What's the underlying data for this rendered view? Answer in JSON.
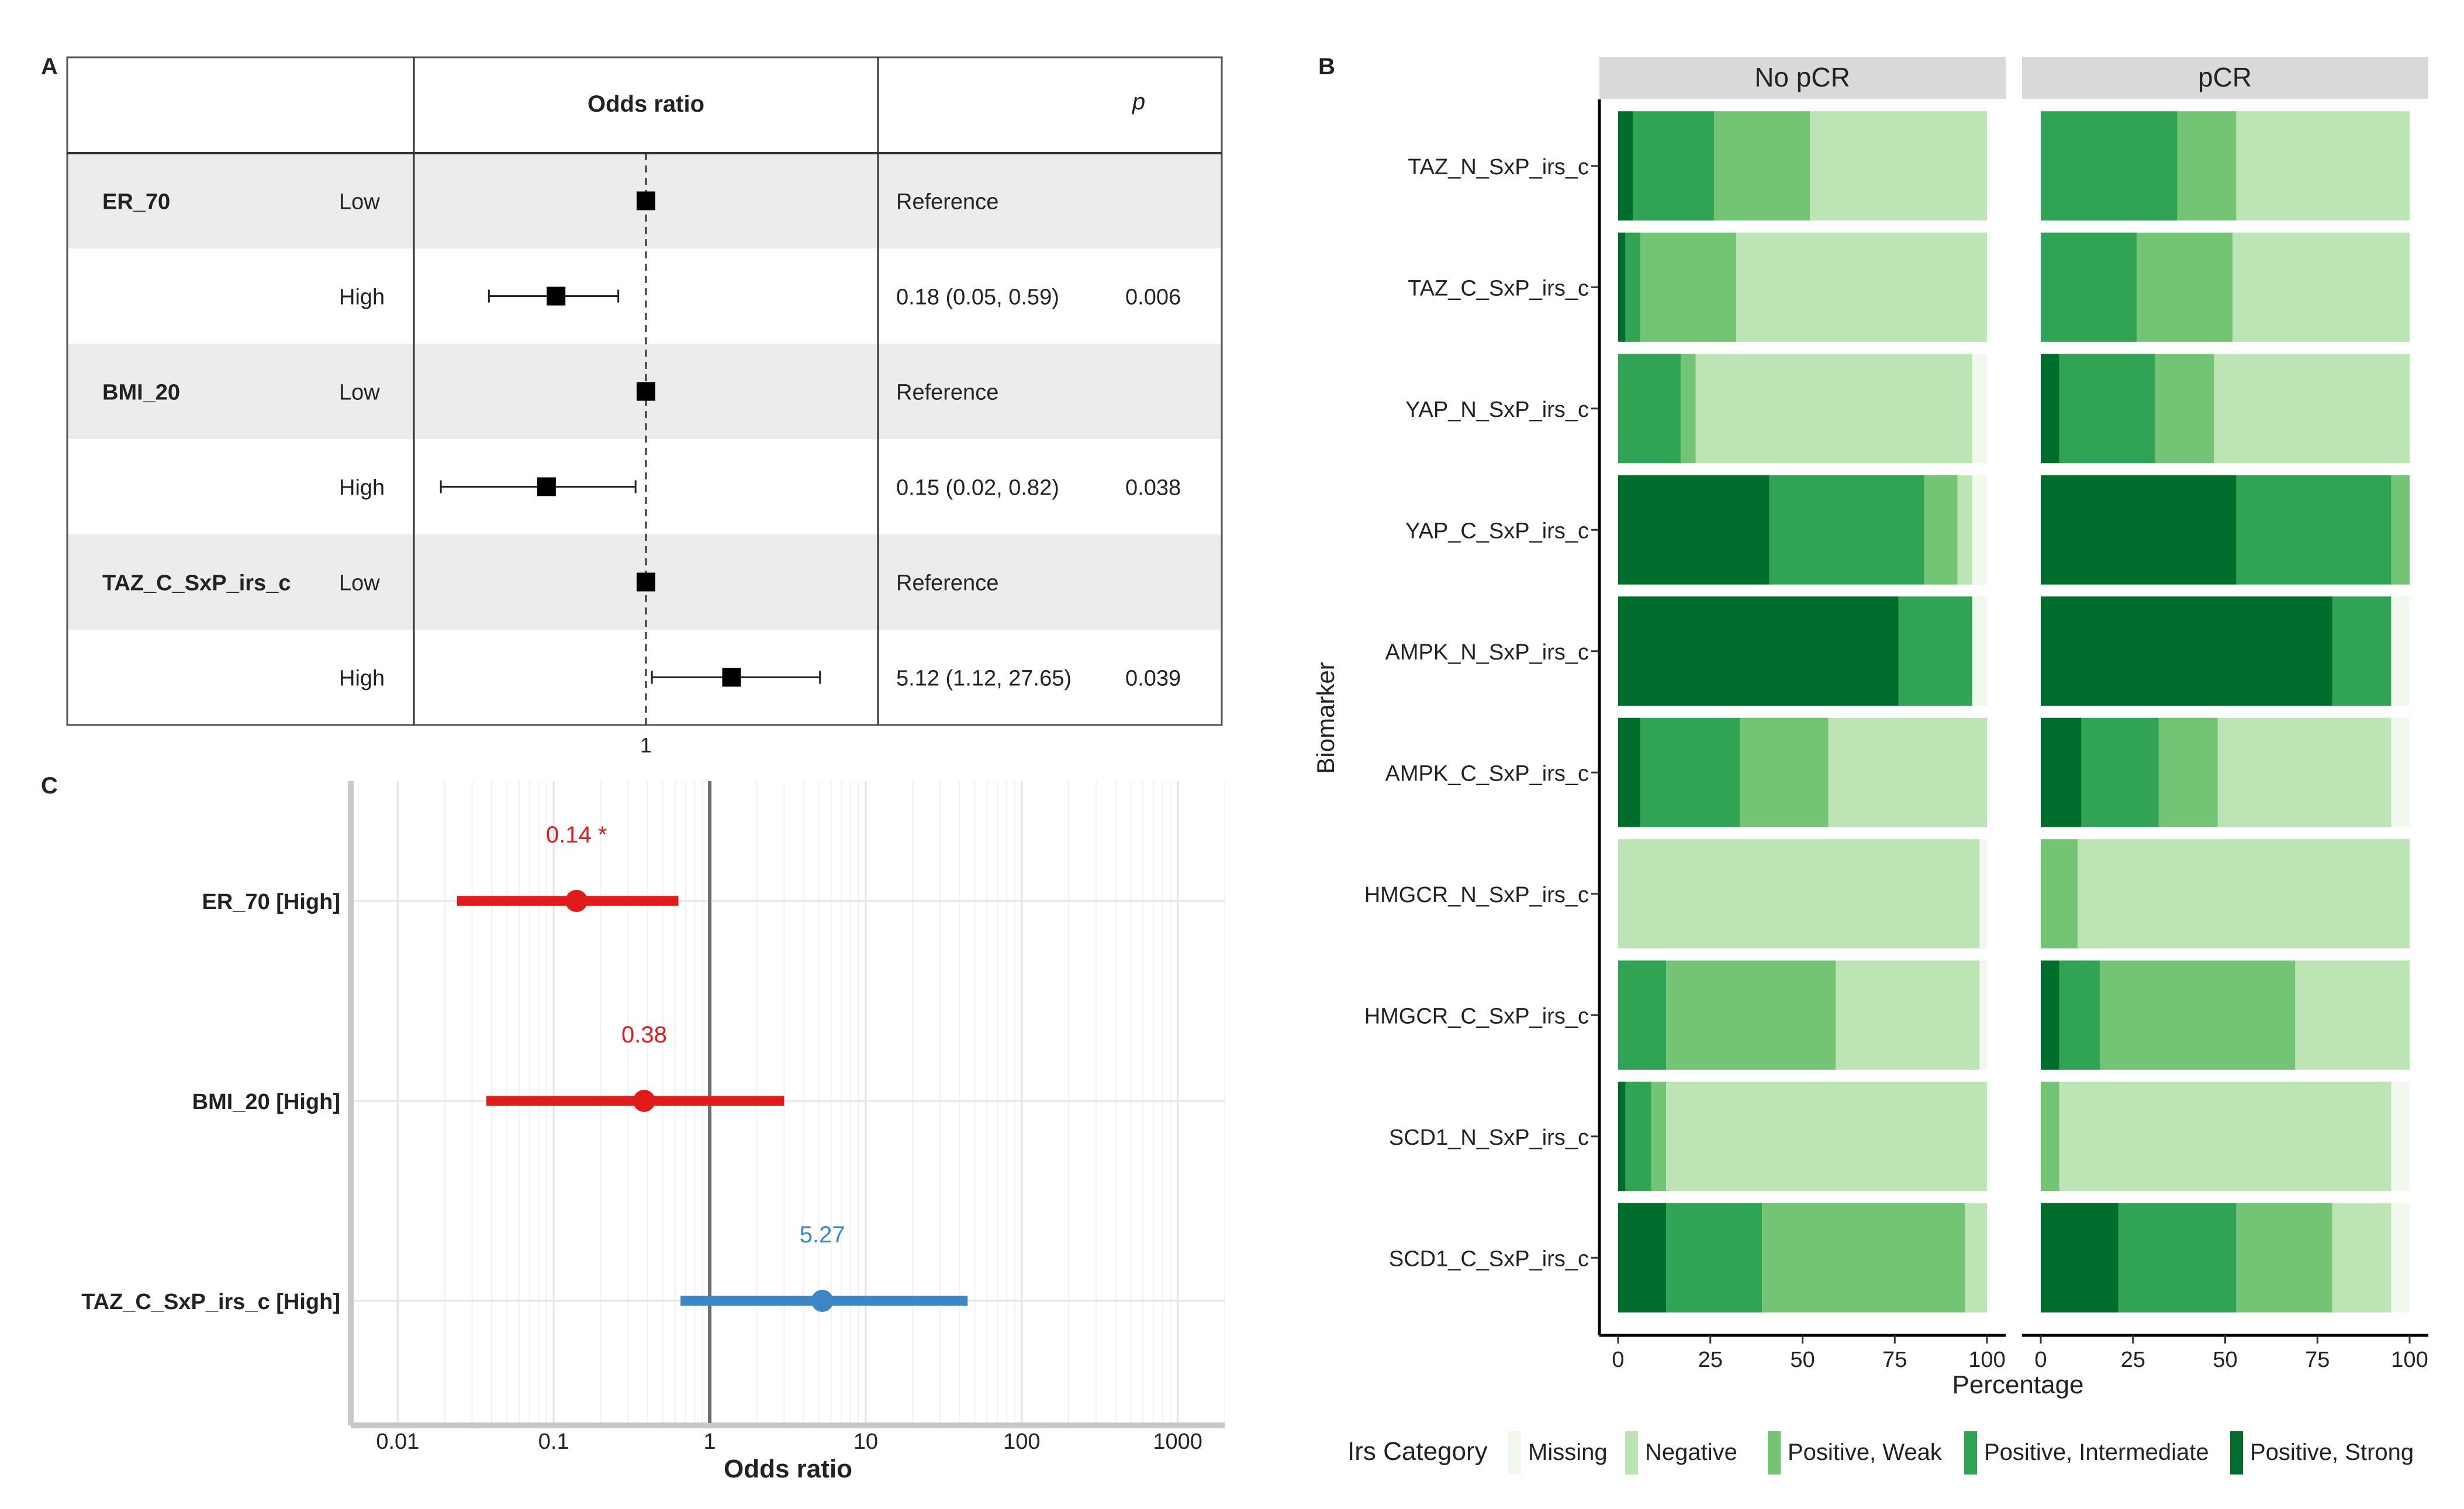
{
  "panel_labels": {
    "a": "A",
    "b": "B",
    "c": "C"
  },
  "colors": {
    "missing": "#f1f8ee",
    "negative": "#bce4b4",
    "weak": "#74c476",
    "intermediate": "#31a354",
    "strong": "#006d2c",
    "red": "#e31a1c",
    "blue": "#3d86c6"
  },
  "chart_data": [
    {
      "type": "table",
      "panel": "A",
      "headers": {
        "or": "Odds ratio",
        "p": "p"
      },
      "axis": {
        "scale": "log",
        "reference": 1,
        "range": [
          0.0125,
          80
        ],
        "tick_label": "1"
      },
      "rows": [
        {
          "group": "ER_70",
          "level": "Low",
          "or": 1,
          "lo": null,
          "hi": null,
          "ci_text": "Reference",
          "p": ""
        },
        {
          "group": "",
          "level": "High",
          "or": 0.18,
          "lo": 0.05,
          "hi": 0.59,
          "ci_text": "0.18 (0.05, 0.59)",
          "p": "0.006"
        },
        {
          "group": "BMI_20",
          "level": "Low",
          "or": 1,
          "lo": null,
          "hi": null,
          "ci_text": "Reference",
          "p": ""
        },
        {
          "group": "",
          "level": "High",
          "or": 0.15,
          "lo": 0.02,
          "hi": 0.82,
          "ci_text": "0.15 (0.02, 0.82)",
          "p": "0.038"
        },
        {
          "group": "TAZ_C_SxP_irs_c",
          "level": "Low",
          "or": 1,
          "lo": null,
          "hi": null,
          "ci_text": "Reference",
          "p": ""
        },
        {
          "group": "",
          "level": "High",
          "or": 5.12,
          "lo": 1.12,
          "hi": 27.65,
          "ci_text": "5.12 (1.12, 27.65)",
          "p": "0.039"
        }
      ]
    },
    {
      "type": "bar",
      "panel": "B",
      "stacked": true,
      "orientation": "horizontal",
      "facets": [
        "No pCR",
        "pCR"
      ],
      "ylabel": "Biomarker",
      "xlabel": "Percentage",
      "xlim": [
        0,
        100
      ],
      "xticks": [
        "0",
        "25",
        "50",
        "75",
        "100"
      ],
      "legend_title": "Irs Category",
      "categories_order": [
        "Positive, Strong",
        "Positive, Intermediate",
        "Positive, Weak",
        "Negative",
        "Missing"
      ],
      "legend": [
        {
          "label": "Missing",
          "key": "missing"
        },
        {
          "label": "Negative",
          "key": "negative"
        },
        {
          "label": "Positive, Weak",
          "key": "weak"
        },
        {
          "label": "Positive, Intermediate",
          "key": "intermediate"
        },
        {
          "label": "Positive, Strong",
          "key": "strong"
        }
      ],
      "biomarkers": [
        {
          "name": "TAZ_N_SxP_irs_c",
          "No pCR": [
            4,
            22,
            26,
            48,
            0
          ],
          "pCR": [
            0,
            37,
            16,
            47,
            0
          ]
        },
        {
          "name": "TAZ_C_SxP_irs_c",
          "No pCR": [
            2,
            4,
            26,
            68,
            0
          ],
          "pCR": [
            0,
            26,
            26,
            48,
            0
          ]
        },
        {
          "name": "YAP_N_SxP_irs_c",
          "No pCR": [
            0,
            17,
            4,
            75,
            4
          ],
          "pCR": [
            5,
            26,
            16,
            53,
            0
          ]
        },
        {
          "name": "YAP_C_SxP_irs_c",
          "No pCR": [
            41,
            42,
            9,
            4,
            4
          ],
          "pCR": [
            53,
            42,
            5,
            0,
            0
          ]
        },
        {
          "name": "AMPK_N_SxP_irs_c",
          "No pCR": [
            76,
            20,
            0,
            0,
            4
          ],
          "pCR": [
            79,
            16,
            0,
            0,
            5
          ]
        },
        {
          "name": "AMPK_C_SxP_irs_c",
          "No pCR": [
            6,
            27,
            24,
            43,
            0
          ],
          "pCR": [
            11,
            21,
            16,
            47,
            5
          ]
        },
        {
          "name": "HMGCR_N_SxP_irs_c",
          "No pCR": [
            0,
            0,
            0,
            98,
            2
          ],
          "pCR": [
            0,
            0,
            10,
            90,
            0
          ]
        },
        {
          "name": "HMGCR_C_SxP_irs_c",
          "No pCR": [
            0,
            13,
            46,
            39,
            2
          ],
          "pCR": [
            5,
            11,
            53,
            31,
            0
          ]
        },
        {
          "name": "SCD1_N_SxP_irs_c",
          "No pCR": [
            2,
            7,
            4,
            87,
            0
          ],
          "pCR": [
            0,
            0,
            5,
            90,
            5
          ]
        },
        {
          "name": "SCD1_C_SxP_irs_c",
          "No pCR": [
            13,
            26,
            55,
            6,
            0
          ],
          "pCR": [
            21,
            32,
            26,
            16,
            5
          ]
        }
      ]
    },
    {
      "type": "scatter",
      "panel": "C",
      "xlabel": "Odds ratio",
      "xscale": "log",
      "xlim": [
        0.005,
        2000
      ],
      "xticks": [
        0.01,
        0.1,
        1,
        10,
        100,
        1000
      ],
      "xtick_labels": [
        "0.01",
        "0.1",
        "1",
        "10",
        "100",
        "1000"
      ],
      "reference": 1,
      "series": [
        {
          "name": "ER_70 [High]",
          "or": 0.14,
          "lo": 0.024,
          "hi": 0.63,
          "label": "0.14 *",
          "color": "red"
        },
        {
          "name": "BMI_20 [High]",
          "or": 0.38,
          "lo": 0.037,
          "hi": 3.0,
          "label": "0.38",
          "color": "red"
        },
        {
          "name": "TAZ_C_SxP_irs_c [High]",
          "or": 5.27,
          "lo": 0.65,
          "hi": 45,
          "label": "5.27",
          "color": "blue"
        }
      ]
    }
  ]
}
